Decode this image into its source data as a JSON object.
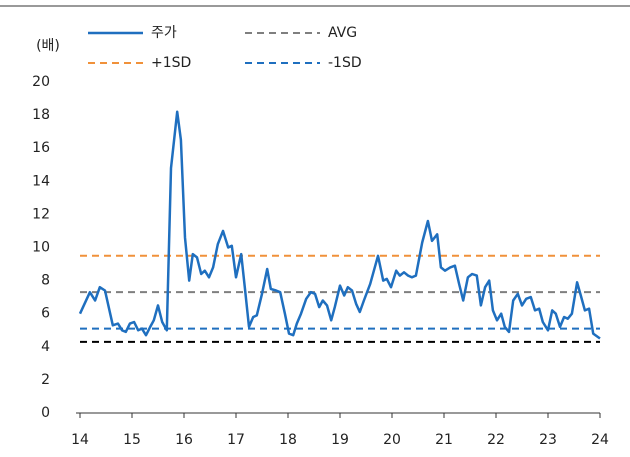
{
  "chart_data": {
    "type": "line",
    "y_label": "(배)",
    "x": [
      14.0,
      14.19,
      14.29,
      14.38,
      14.48,
      14.58,
      14.63,
      14.73,
      14.81,
      14.88,
      14.96,
      15.04,
      15.12,
      15.19,
      15.27,
      15.35,
      15.42,
      15.5,
      15.58,
      15.67,
      15.75,
      15.87,
      15.94,
      16.02,
      16.1,
      16.17,
      16.25,
      16.33,
      16.4,
      16.48,
      16.56,
      16.65,
      16.75,
      16.85,
      16.92,
      17.0,
      17.1,
      17.17,
      17.25,
      17.33,
      17.4,
      17.5,
      17.6,
      17.67,
      17.77,
      17.85,
      17.94,
      18.02,
      18.1,
      18.17,
      18.25,
      18.35,
      18.44,
      18.52,
      18.6,
      18.67,
      18.75,
      18.83,
      18.9,
      19.0,
      19.08,
      19.15,
      19.23,
      19.31,
      19.38,
      19.46,
      19.58,
      19.73,
      19.83,
      19.9,
      19.98,
      20.08,
      20.15,
      20.23,
      20.31,
      20.38,
      20.46,
      20.58,
      20.69,
      20.77,
      20.87,
      20.94,
      21.02,
      21.12,
      21.21,
      21.29,
      21.37,
      21.46,
      21.54,
      21.63,
      21.71,
      21.79,
      21.87,
      21.94,
      22.02,
      22.1,
      22.17,
      22.25,
      22.33,
      22.42,
      22.5,
      22.58,
      22.67,
      22.75,
      22.83,
      22.9,
      23.0,
      23.08,
      23.15,
      23.23,
      23.31,
      23.38,
      23.46,
      23.56,
      23.63,
      23.71,
      23.79,
      23.87,
      24.0
    ],
    "series": [
      {
        "name": "주가",
        "color": "#1f6fbf",
        "values": [
          6.0,
          7.3,
          6.8,
          7.6,
          7.4,
          6.0,
          5.3,
          5.4,
          5.0,
          4.9,
          5.4,
          5.5,
          5.0,
          5.1,
          4.7,
          5.2,
          5.6,
          6.5,
          5.5,
          5.0,
          14.8,
          18.2,
          16.5,
          10.6,
          8.0,
          9.6,
          9.4,
          8.4,
          8.6,
          8.2,
          8.8,
          10.2,
          11.0,
          10.0,
          10.1,
          8.2,
          9.6,
          7.6,
          5.2,
          5.8,
          5.9,
          7.2,
          8.7,
          7.5,
          7.4,
          7.3,
          6.0,
          4.8,
          4.7,
          5.4,
          6.0,
          6.9,
          7.3,
          7.2,
          6.4,
          6.8,
          6.5,
          5.6,
          6.4,
          7.7,
          7.1,
          7.6,
          7.4,
          6.6,
          6.1,
          6.8,
          7.8,
          9.5,
          8.0,
          8.1,
          7.6,
          8.6,
          8.3,
          8.5,
          8.3,
          8.2,
          8.3,
          10.3,
          11.6,
          10.4,
          10.8,
          8.8,
          8.6,
          8.8,
          8.9,
          7.8,
          6.8,
          8.2,
          8.4,
          8.3,
          6.5,
          7.6,
          8.0,
          6.2,
          5.6,
          6.0,
          5.2,
          4.9,
          6.8,
          7.2,
          6.5,
          6.9,
          7.0,
          6.2,
          6.3,
          5.5,
          5.0,
          6.2,
          6.0,
          5.2,
          5.8,
          5.7,
          6.0,
          7.9,
          7.1,
          6.2,
          6.3,
          4.8,
          4.5
        ]
      }
    ],
    "reference_lines": [
      {
        "name": "AVG",
        "color": "#7f7f7f",
        "value": 7.3
      },
      {
        "name": "+1SD",
        "color": "#f0913a",
        "value": 9.5
      },
      {
        "name": "-1SD",
        "color": "#1f6fbf",
        "value": 5.1
      },
      {
        "color": "#000000",
        "value": 4.3
      }
    ],
    "xlim": [
      14,
      24
    ],
    "xticks": [
      14,
      15,
      16,
      17,
      18,
      19,
      20,
      21,
      22,
      23,
      24
    ],
    "ylim": [
      0,
      20
    ],
    "yticks": [
      0,
      2,
      4,
      6,
      8,
      10,
      12,
      14,
      16,
      18,
      20
    ]
  }
}
